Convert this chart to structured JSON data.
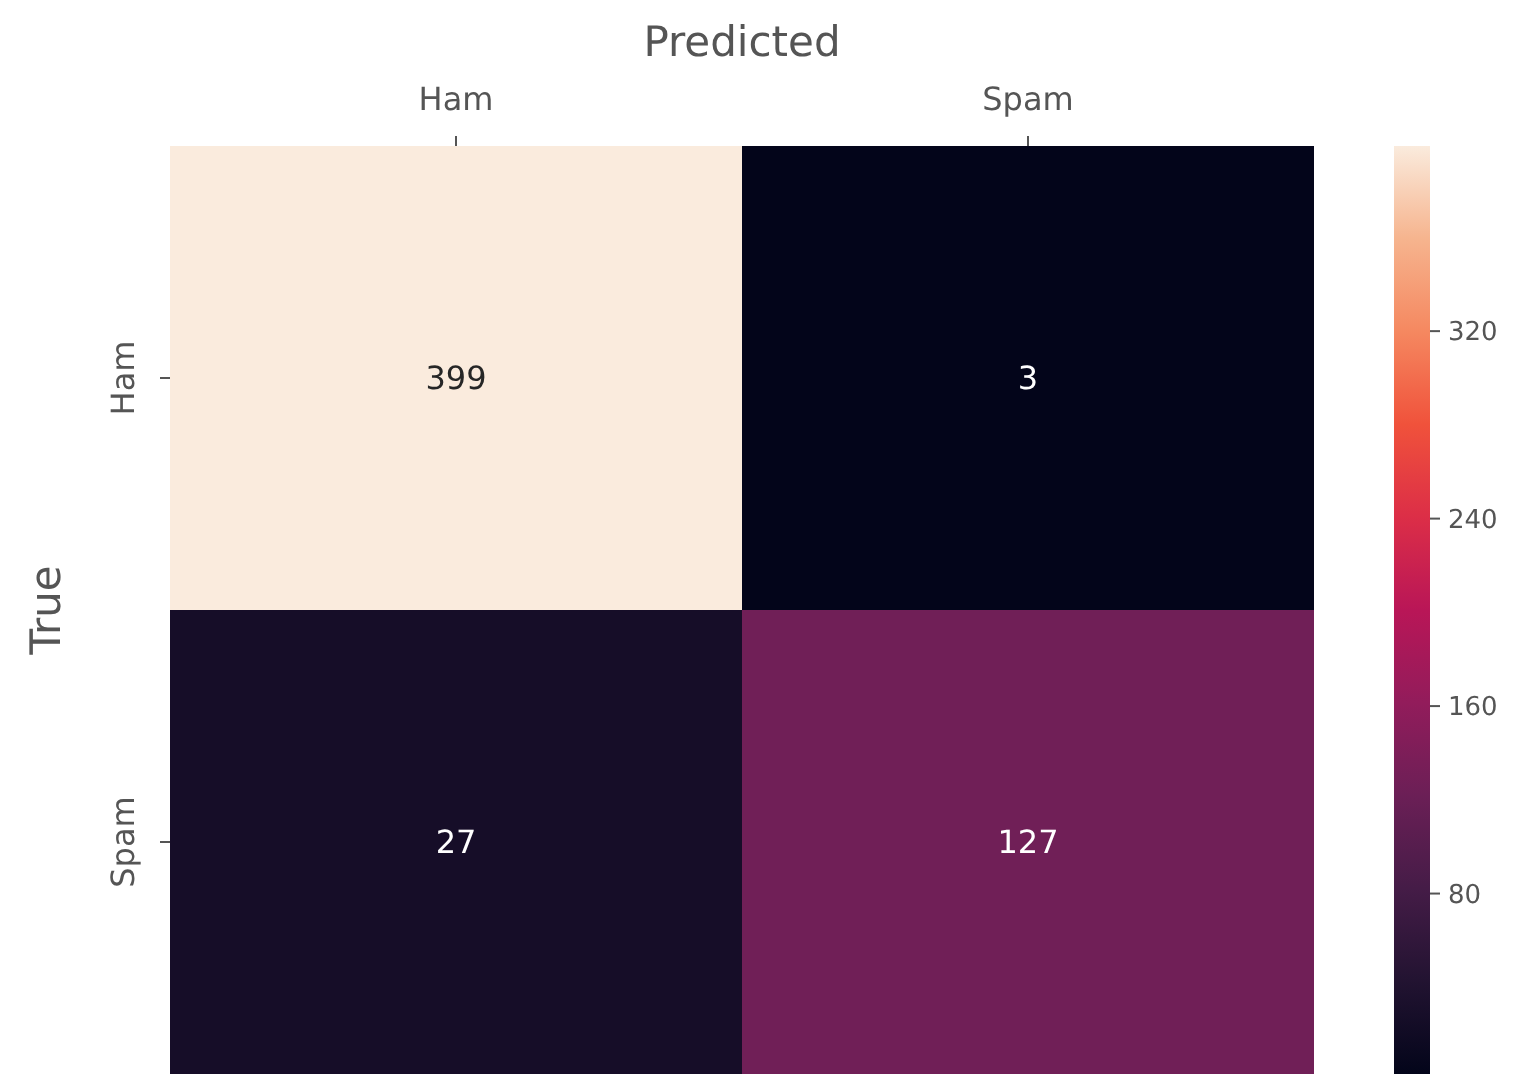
{
  "chart_data": {
    "type": "heatmap",
    "xlabel": "Predicted",
    "ylabel": "True",
    "categories": [
      "Ham",
      "Spam"
    ],
    "y_categories": [
      "Ham",
      "Spam"
    ],
    "cells": [
      [
        399,
        3
      ],
      [
        27,
        127
      ]
    ],
    "clim": [
      3,
      399
    ],
    "cticks": [
      80,
      160,
      240,
      320
    ],
    "data_labels": true
  }
}
